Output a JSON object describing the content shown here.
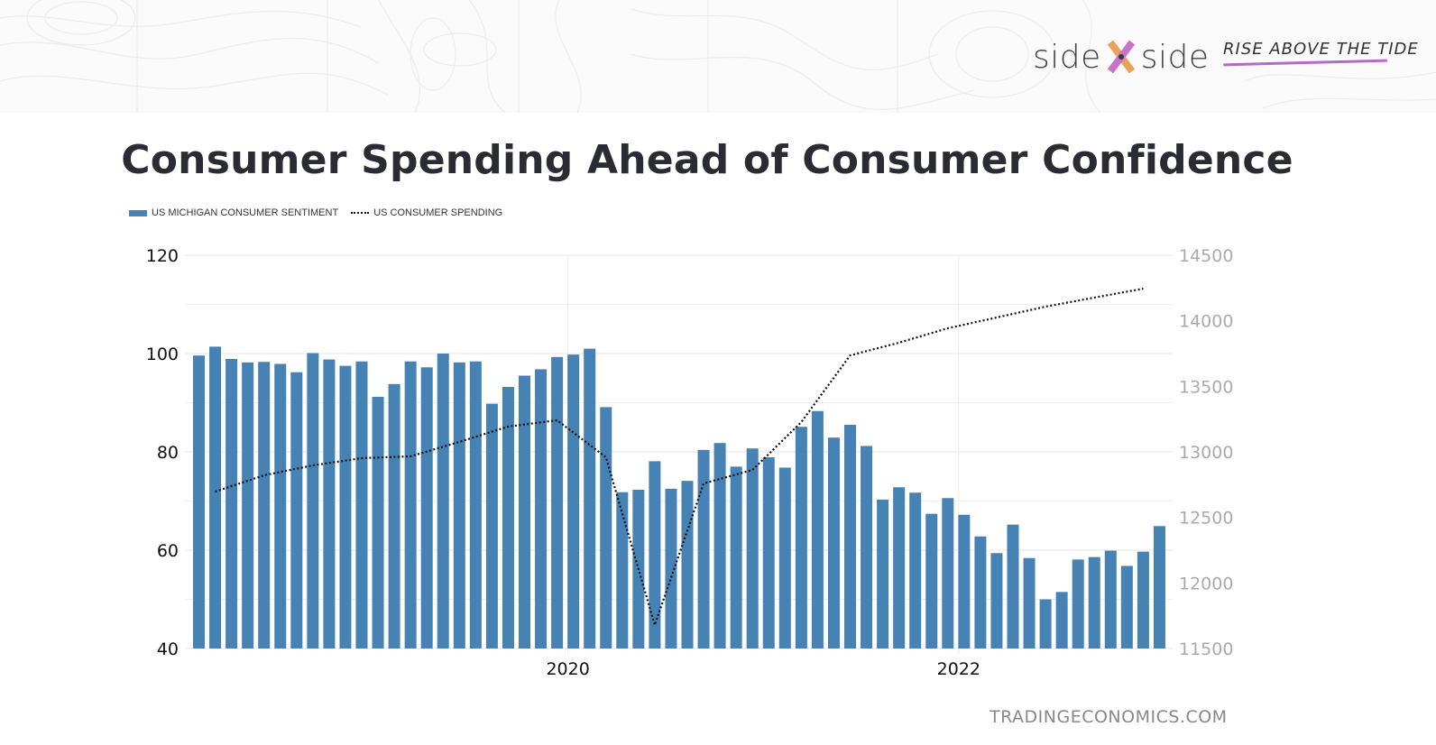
{
  "brand": {
    "logo_left": "side",
    "logo_right": "side",
    "tagline": "RISE ABOVE THE TIDE",
    "colors": {
      "x_orange": "#e8a35a",
      "x_purple": "#c774c9",
      "underline": "#b36bc4"
    }
  },
  "page": {
    "title": "Consumer Spending Ahead of Consumer Confidence",
    "source": "TRADINGECONOMICS.COM"
  },
  "chart_data": {
    "type": "bar",
    "title": "Consumer Spending Ahead of Consumer Confidence",
    "legend": [
      "US MICHIGAN CONSUMER SENTIMENT",
      "US CONSUMER SPENDING"
    ],
    "legend_placement": "top-left",
    "grid": true,
    "x_tick_labels": [
      "2020",
      "2022"
    ],
    "x_range": [
      "2018-02",
      "2023-01"
    ],
    "y_left": {
      "ticks": [
        "120",
        "100",
        "80",
        "60",
        "40"
      ],
      "ylim": [
        40,
        120
      ]
    },
    "y_right": {
      "ticks": [
        "14500",
        "14000",
        "13500",
        "13000",
        "12500",
        "12000",
        "11500"
      ],
      "ylim": [
        11500,
        14500
      ]
    },
    "series": [
      {
        "name": "US MICHIGAN CONSUMER SENTIMENT",
        "type": "bar",
        "axis": "left",
        "color": "#4682b4",
        "start_month": "2018-02",
        "values": [
          99.6,
          101.4,
          98.9,
          98.2,
          98.3,
          97.9,
          96.2,
          100.1,
          98.8,
          97.5,
          98.4,
          91.2,
          93.8,
          98.4,
          97.2,
          100.0,
          98.2,
          98.4,
          89.8,
          93.2,
          95.5,
          96.8,
          99.3,
          99.8,
          101.0,
          89.1,
          71.8,
          72.3,
          78.1,
          72.5,
          74.1,
          80.4,
          81.8,
          77.0,
          80.7,
          78.9,
          76.8,
          85.1,
          88.3,
          82.9,
          85.5,
          81.2,
          70.3,
          72.8,
          71.7,
          67.4,
          70.6,
          67.2,
          62.8,
          59.4,
          65.2,
          58.4,
          50.0,
          51.5,
          58.1,
          58.6,
          59.9,
          56.8,
          59.7,
          64.9
        ]
      },
      {
        "name": "US CONSUMER SPENDING",
        "type": "line",
        "style": "dotted",
        "axis": "right",
        "color": "#111111",
        "bar_index_of_points": [
          1,
          4,
          7,
          10,
          13,
          16,
          19,
          22,
          25,
          28,
          31,
          34,
          37,
          40,
          43,
          46,
          49,
          52,
          55,
          58
        ],
        "values": [
          12697,
          12821,
          12897,
          12952,
          12966,
          13076,
          13193,
          13241,
          12959,
          11679,
          12759,
          12862,
          13227,
          13736,
          13833,
          13943,
          14025,
          14108,
          14177,
          14245
        ]
      }
    ]
  }
}
